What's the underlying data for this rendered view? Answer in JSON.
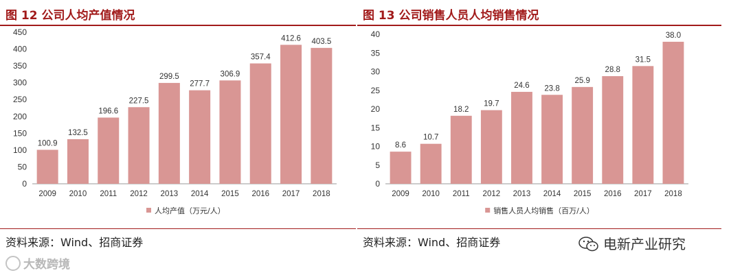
{
  "charts": [
    {
      "title": "图 12  公司人均产值情况",
      "source": "资料来源：Wind、招商证券",
      "chart_data": {
        "type": "bar",
        "categories": [
          "2009",
          "2010",
          "2011",
          "2012",
          "2013",
          "2014",
          "2015",
          "2016",
          "2017",
          "2018"
        ],
        "series": [
          {
            "name": "人均产值（万元/人）",
            "values": [
              100.9,
              132.5,
              196.6,
              227.5,
              299.5,
              277.7,
              306.9,
              357.4,
              412.6,
              403.5
            ]
          }
        ],
        "value_labels": [
          "100.9",
          "132.5",
          "196.6",
          "227.5",
          "299.5",
          "277.7",
          "306.9",
          "357.4",
          "412.6",
          "403.5"
        ],
        "ylim": [
          0,
          450
        ],
        "yticks": [
          0,
          50,
          100,
          150,
          200,
          250,
          300,
          350,
          400,
          450
        ],
        "grid": false,
        "legend_position": "bottom",
        "bar_color": "#d99694"
      }
    },
    {
      "title": "图 13  公司销售人员人均销售情况",
      "source": "资料来源：Wind、招商证券",
      "chart_data": {
        "type": "bar",
        "categories": [
          "2009",
          "2010",
          "2011",
          "2012",
          "2013",
          "2014",
          "2015",
          "2016",
          "2017",
          "2018"
        ],
        "series": [
          {
            "name": "销售人员人均销售（百万/人）",
            "values": [
              8.6,
              10.7,
              18.2,
              19.7,
              24.6,
              23.8,
              25.9,
              28.8,
              31.5,
              38.0
            ]
          }
        ],
        "value_labels": [
          "8.6",
          "10.7",
          "18.2",
          "19.7",
          "24.6",
          "23.8",
          "25.9",
          "28.8",
          "31.5",
          "38.0"
        ],
        "ylim": [
          0,
          40
        ],
        "yticks": [
          0,
          5,
          10,
          15,
          20,
          25,
          30,
          35,
          40
        ],
        "grid": false,
        "legend_position": "bottom",
        "bar_color": "#d99694"
      }
    }
  ],
  "watermarks": {
    "left": "大数跨境",
    "right": "电新产业研究"
  },
  "colors": {
    "title": "#a11a1a",
    "bar": "#d99694",
    "axis": "#888888"
  }
}
